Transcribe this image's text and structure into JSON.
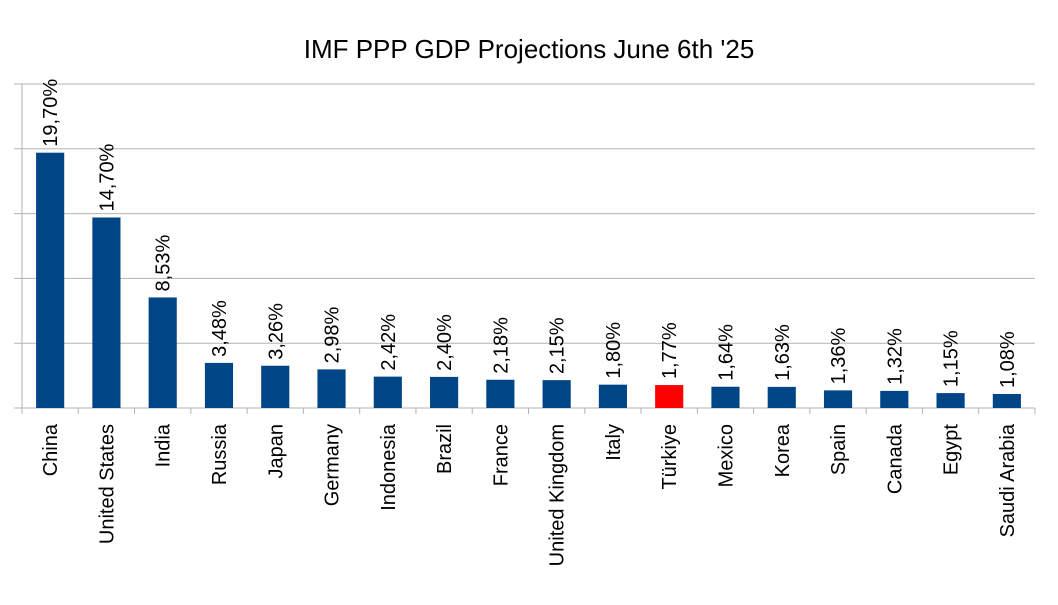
{
  "chart_data": {
    "type": "bar",
    "title": "IMF PPP GDP Projections June 6th '25",
    "xlabel": "",
    "ylabel": "",
    "ylim": [
      0,
      25
    ],
    "grid": true,
    "legend": "none",
    "categories": [
      "China",
      "United States",
      "India",
      "Russia",
      "Japan",
      "Germany",
      "Indonesia",
      "Brazil",
      "France",
      "United Kingdom",
      "Italy",
      "Türkiye",
      "Mexico",
      "Korea",
      "Spain",
      "Canada",
      "Egypt",
      "Saudi Arabia"
    ],
    "values": [
      19.7,
      14.7,
      8.53,
      3.48,
      3.26,
      2.98,
      2.42,
      2.4,
      2.18,
      2.15,
      1.8,
      1.77,
      1.64,
      1.63,
      1.36,
      1.32,
      1.15,
      1.08
    ],
    "value_labels": [
      "19,70%",
      "14,70%",
      "8,53%",
      "3,48%",
      "3,26%",
      "2,98%",
      "2,42%",
      "2,40%",
      "2,18%",
      "2,15%",
      "1,80%",
      "1,77%",
      "1,64%",
      "1,63%",
      "1,36%",
      "1,32%",
      "1,15%",
      "1,08%"
    ],
    "highlight_index": 11,
    "colors": {
      "bar": "#004586",
      "highlight": "#ff0000",
      "grid": "#b3b3b3",
      "axis": "#b3b3b3",
      "text": "#000000"
    }
  }
}
